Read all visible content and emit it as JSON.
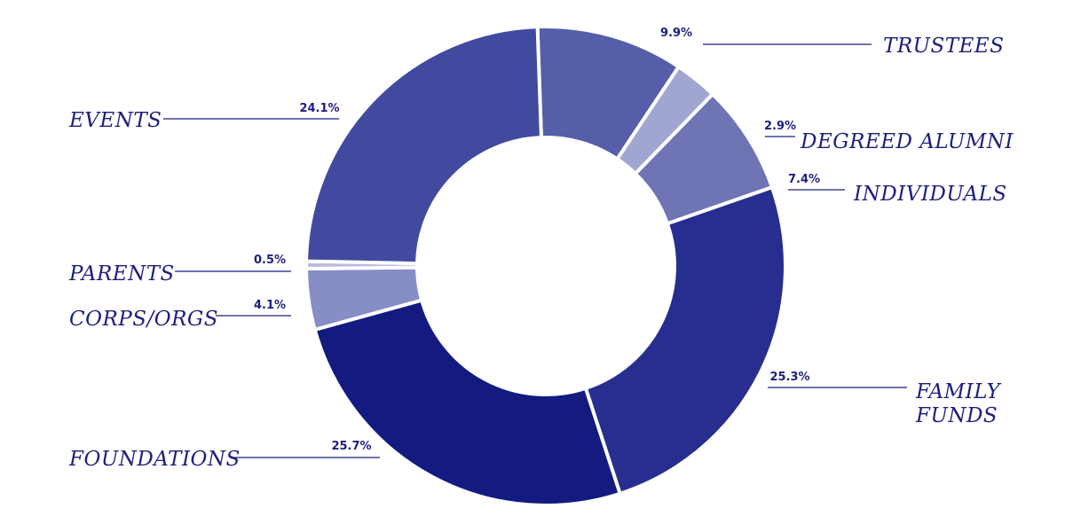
{
  "chart_data": {
    "type": "pie",
    "variant": "donut",
    "slices": [
      {
        "label": "TRUSTEES",
        "value": 9.9,
        "pct_label": "9.9%",
        "color": "#555ea8"
      },
      {
        "label": "DEGREED ALUMNI",
        "value": 2.9,
        "pct_label": "2.9%",
        "color": "#a1a6d1"
      },
      {
        "label": "INDIVIDUALS",
        "value": 7.4,
        "pct_label": "7.4%",
        "color": "#6e74b4"
      },
      {
        "label": "FAMILY FUNDS",
        "value": 25.3,
        "pct_label": "25.3%",
        "color": "#272e8f"
      },
      {
        "label": "FOUNDATIONS",
        "value": 25.7,
        "pct_label": "25.7%",
        "color": "#131a80"
      },
      {
        "label": "CORPS/ORGS",
        "value": 4.1,
        "pct_label": "4.1%",
        "color": "#878dc5"
      },
      {
        "label": "PARENTS",
        "value": 0.5,
        "pct_label": "0.5%",
        "color": "#b9bcdd"
      },
      {
        "label": "EVENTS",
        "value": 24.1,
        "pct_label": "24.1%",
        "color": "#424a9f"
      }
    ]
  }
}
